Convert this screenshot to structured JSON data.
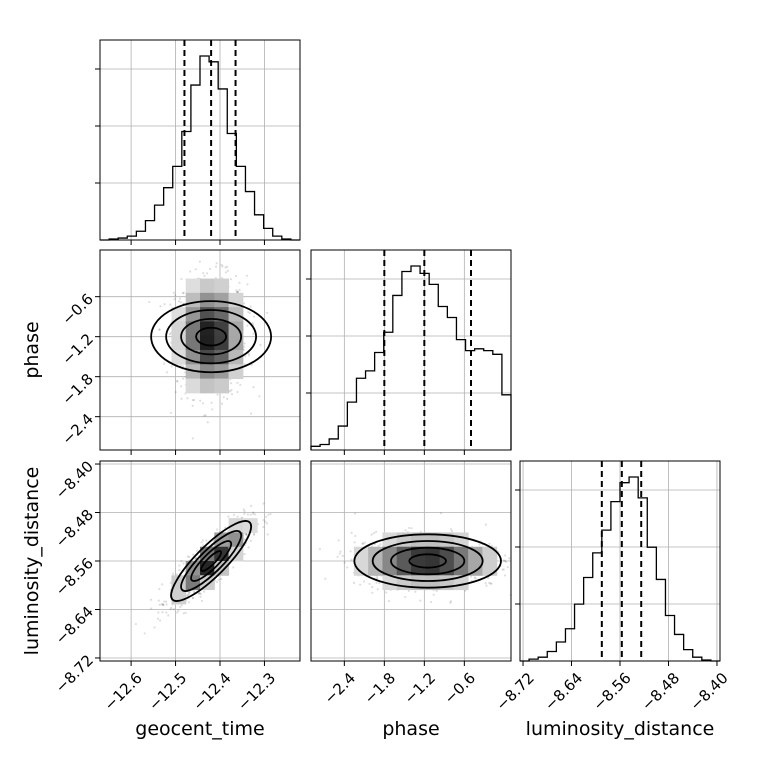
{
  "chart_data": {
    "type": "corner",
    "parameters": [
      "geocent_time",
      "phase",
      "luminosity_distance"
    ],
    "axis_labels": {
      "geocent_time": "geocent_time",
      "phase": "phase",
      "luminosity_distance": "luminosity_distance"
    },
    "ranges": {
      "geocent_time": [
        -12.67,
        -12.22
      ],
      "phase": [
        -2.9,
        0.1
      ],
      "luminosity_distance": [
        -8.725,
        -8.395
      ]
    },
    "ticks": {
      "geocent_time": {
        "values": [
          -12.6,
          -12.5,
          -12.4,
          -12.3
        ],
        "labels": [
          "−12.6",
          "−12.5",
          "−12.4",
          "−12.3"
        ]
      },
      "phase": {
        "values": [
          -2.4,
          -1.8,
          -1.2,
          -0.6
        ],
        "labels": [
          "−2.4",
          "−1.8",
          "−1.2",
          "−0.6"
        ]
      },
      "luminosity_distance": {
        "values": [
          -8.72,
          -8.64,
          -8.56,
          -8.48,
          -8.4
        ],
        "labels": [
          "−8.72",
          "−8.64",
          "−8.56",
          "−8.48",
          "−8.40"
        ]
      }
    },
    "quantiles": {
      "geocent_time": [
        -12.48,
        -12.42,
        -12.365
      ],
      "phase": [
        -1.8,
        -1.2,
        -0.5
      ],
      "luminosity_distance": [
        -8.59,
        -8.557,
        -8.525
      ]
    },
    "histograms": {
      "geocent_time": [
        0,
        0.005,
        0.01,
        0.02,
        0.045,
        0.1,
        0.18,
        0.27,
        0.38,
        0.56,
        0.8,
        0.95,
        0.92,
        0.78,
        0.55,
        0.38,
        0.25,
        0.13,
        0.06,
        0.02,
        0.005,
        0
      ],
      "phase": [
        0.02,
        0.03,
        0.06,
        0.13,
        0.26,
        0.39,
        0.43,
        0.53,
        0.64,
        0.84,
        0.97,
        1.0,
        0.96,
        0.9,
        0.78,
        0.72,
        0.6,
        0.54,
        0.55,
        0.54,
        0.52,
        0.3
      ],
      "luminosity_distance": [
        0,
        0.01,
        0.02,
        0.05,
        0.1,
        0.17,
        0.3,
        0.44,
        0.57,
        0.69,
        0.84,
        0.94,
        0.97,
        0.86,
        0.6,
        0.43,
        0.24,
        0.14,
        0.06,
        0.02,
        0.005,
        0
      ]
    },
    "joint_2d": [
      {
        "x": "geocent_time",
        "y": "phase",
        "mean": [
          -12.42,
          -1.2
        ],
        "std": [
          0.04,
          0.45
        ],
        "correlation": 0.0
      },
      {
        "x": "geocent_time",
        "y": "luminosity_distance",
        "mean": [
          -12.42,
          -8.56
        ],
        "std": [
          0.045,
          0.033
        ],
        "correlation": 0.86
      },
      {
        "x": "phase",
        "y": "luminosity_distance",
        "mean": [
          -1.15,
          -8.56
        ],
        "std": [
          0.55,
          0.022
        ],
        "correlation": 0.0
      }
    ],
    "grid": true,
    "legend": "none"
  }
}
